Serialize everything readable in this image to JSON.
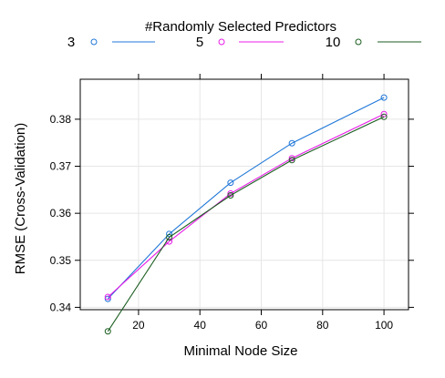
{
  "chart_data": {
    "type": "line",
    "legend": {
      "title": "#Randomly Selected Predictors",
      "placement": "top"
    },
    "xlabel": "Minimal Node Size",
    "ylabel": "RMSE (Cross-Validation)",
    "xlim": [
      1,
      108
    ],
    "ylim": [
      0.3395,
      0.3885
    ],
    "xticks": [
      20,
      40,
      60,
      80,
      100
    ],
    "yticks": [
      0.34,
      0.35,
      0.36,
      0.37,
      0.38
    ],
    "ytick_labels": [
      "0.34",
      "0.35",
      "0.36",
      "0.37",
      "0.38"
    ],
    "grid": true,
    "x": [
      10,
      30,
      50,
      70,
      100
    ],
    "series": [
      {
        "name": "3",
        "color": "#1f77d8",
        "values": [
          0.3418,
          0.3556,
          0.3665,
          0.3749,
          0.3846
        ]
      },
      {
        "name": "5",
        "color": "#e81ce8",
        "values": [
          0.3422,
          0.354,
          0.3642,
          0.3717,
          0.3811
        ]
      },
      {
        "name": "10",
        "color": "#1b5e20",
        "values": [
          0.3349,
          0.3549,
          0.3638,
          0.3713,
          0.3805
        ]
      }
    ]
  }
}
